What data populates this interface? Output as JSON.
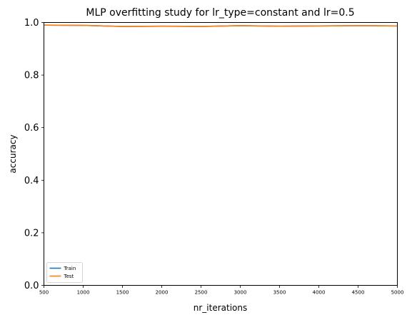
{
  "chart_data": {
    "type": "line",
    "title": "MLP overfitting study for lr_type=constant and lr=0.5",
    "xlabel": "nr_iterations",
    "ylabel": "accuracy",
    "xlim": [
      500,
      5000
    ],
    "ylim": [
      0.0,
      1.0
    ],
    "x_ticks": [
      500,
      1000,
      1500,
      2000,
      2500,
      3000,
      3500,
      4000,
      4500,
      5000
    ],
    "y_ticks": [
      "0.0",
      "0.2",
      "0.4",
      "0.6",
      "0.8",
      "1.0"
    ],
    "grid": false,
    "legend_position": "lower-left",
    "x": [
      500,
      1000,
      1500,
      2000,
      2500,
      3000,
      3500,
      4000,
      4500,
      5000
    ],
    "series": [
      {
        "name": "Train",
        "color": "#1f77b4",
        "values": [
          0.99,
          0.989,
          0.985,
          0.986,
          0.985,
          0.988,
          0.986,
          0.987,
          0.988,
          0.987
        ]
      },
      {
        "name": "Test",
        "color": "#ff7f0e",
        "values": [
          0.99,
          0.989,
          0.985,
          0.986,
          0.985,
          0.988,
          0.986,
          0.987,
          0.988,
          0.987
        ]
      }
    ]
  }
}
